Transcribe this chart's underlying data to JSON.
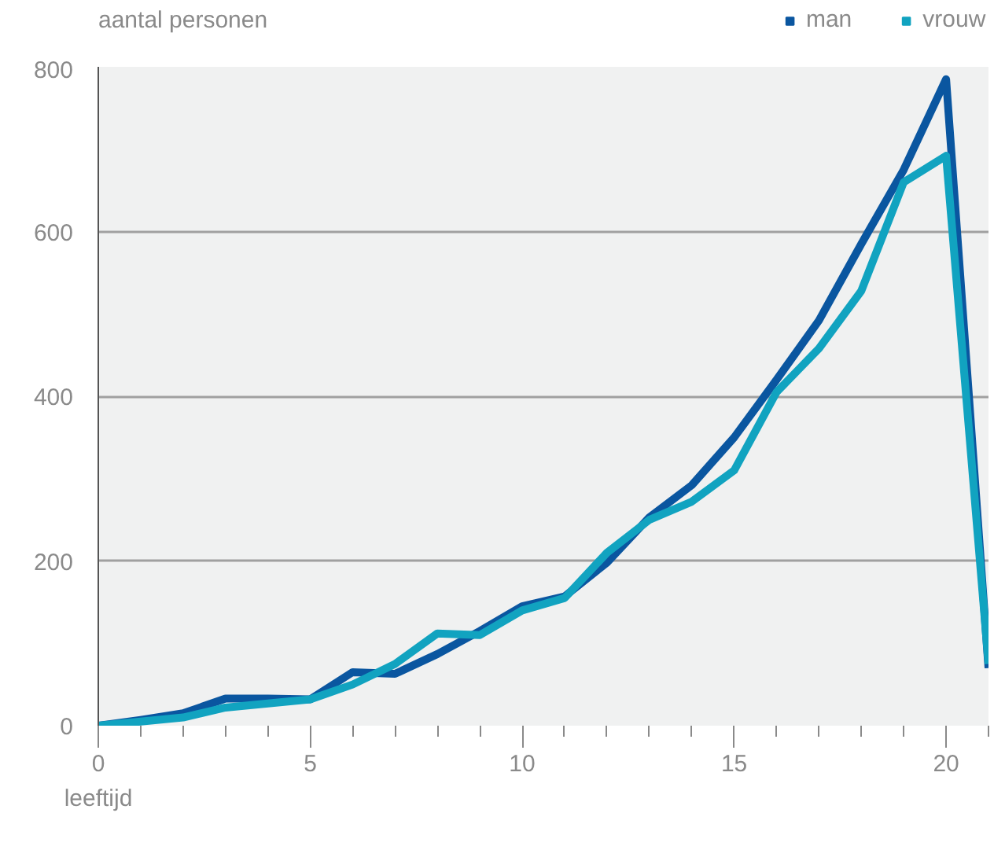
{
  "chart_data": {
    "type": "line",
    "ylabel": "aantal personen",
    "xlabel": "leeftijd",
    "x": [
      0,
      1,
      2,
      3,
      4,
      5,
      6,
      7,
      8,
      9,
      10,
      11,
      12,
      13,
      14,
      15,
      16,
      17,
      18,
      19,
      20,
      21
    ],
    "series": [
      {
        "name": "man",
        "color": "#0a56a0",
        "values": [
          0,
          7,
          15,
          33,
          33,
          32,
          65,
          63,
          87,
          115,
          145,
          157,
          198,
          253,
          292,
          350,
          420,
          492,
          585,
          675,
          785,
          70
        ]
      },
      {
        "name": "vrouw",
        "color": "#11a3c0",
        "values": [
          0,
          5,
          10,
          22,
          27,
          32,
          50,
          75,
          112,
          110,
          140,
          155,
          210,
          250,
          272,
          310,
          405,
          458,
          528,
          660,
          692,
          75
        ]
      }
    ],
    "xlim": [
      0,
      21
    ],
    "ylim": [
      0,
      800
    ],
    "xticks": [
      0,
      {
        "value": 1,
        "label": null
      },
      {
        "value": 2,
        "label": null
      },
      {
        "value": 3,
        "label": null
      },
      {
        "value": 4,
        "label": null
      },
      5,
      {
        "value": 6,
        "label": null
      },
      {
        "value": 7,
        "label": null
      },
      {
        "value": 8,
        "label": null
      },
      {
        "value": 9,
        "label": null
      },
      10,
      {
        "value": 11,
        "label": null
      },
      {
        "value": 12,
        "label": null
      },
      {
        "value": 13,
        "label": null
      },
      {
        "value": 14,
        "label": null
      },
      15,
      {
        "value": 16,
        "label": null
      },
      {
        "value": 17,
        "label": null
      },
      {
        "value": 18,
        "label": null
      },
      {
        "value": 19,
        "label": null
      },
      20,
      {
        "value": 21,
        "label": null
      }
    ],
    "yticks": [
      0,
      200,
      400,
      600,
      800
    ],
    "grid": "y",
    "legend": "top right",
    "marker": "none",
    "line_style": "solid"
  }
}
